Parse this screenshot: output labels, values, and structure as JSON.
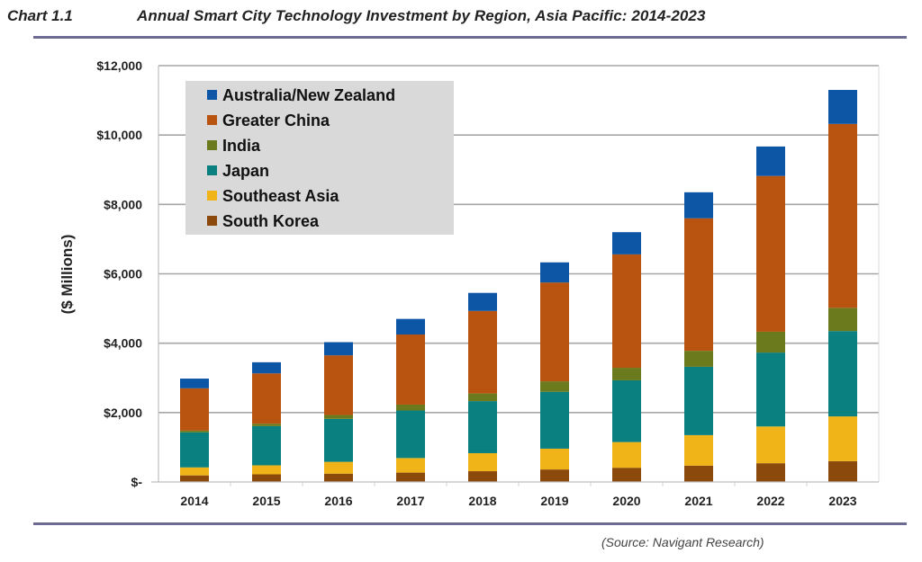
{
  "header": {
    "chart_number": "Chart 1.1",
    "title": "Annual Smart City Technology Investment by Region, Asia Pacific: 2014-2023"
  },
  "footer": {
    "source": "(Source: Navigant Research)"
  },
  "chart_data": {
    "type": "bar",
    "stacked": true,
    "title": "Annual Smart City Technology Investment by Region, Asia Pacific: 2014-2023",
    "xlabel": "",
    "ylabel": "($ Millions)",
    "ylim": [
      0,
      12000
    ],
    "yticks": [
      0,
      2000,
      4000,
      6000,
      8000,
      10000,
      12000
    ],
    "ytick_labels": [
      "$-",
      "$2,000",
      "$4,000",
      "$6,000",
      "$8,000",
      "$10,000",
      "$12,000"
    ],
    "grid": true,
    "legend_position": "top-left",
    "categories": [
      "2014",
      "2015",
      "2016",
      "2017",
      "2018",
      "2019",
      "2020",
      "2021",
      "2022",
      "2023"
    ],
    "series": [
      {
        "name": "South Korea",
        "color": "#8b4a0b",
        "values": [
          190,
          220,
          240,
          270,
          310,
          360,
          410,
          470,
          540,
          600
        ]
      },
      {
        "name": "Southeast Asia",
        "color": "#f0b418",
        "values": [
          230,
          260,
          340,
          420,
          520,
          600,
          740,
          880,
          1060,
          1290
        ]
      },
      {
        "name": "Japan",
        "color": "#0a8080",
        "values": [
          1010,
          1130,
          1240,
          1370,
          1500,
          1640,
          1780,
          1970,
          2130,
          2460
        ]
      },
      {
        "name": "India",
        "color": "#6a7a1c",
        "values": [
          50,
          70,
          110,
          170,
          220,
          300,
          360,
          460,
          600,
          670
        ]
      },
      {
        "name": "Greater China",
        "color": "#b8540f",
        "values": [
          1220,
          1450,
          1720,
          2020,
          2380,
          2850,
          3270,
          3820,
          4490,
          5300
        ]
      },
      {
        "name": "Australia/New Zealand",
        "color": "#0d55a5",
        "values": [
          280,
          320,
          380,
          450,
          520,
          580,
          640,
          750,
          850,
          980
        ]
      }
    ],
    "legend_order": [
      "Australia/New Zealand",
      "Greater China",
      "India",
      "Japan",
      "Southeast Asia",
      "South Korea"
    ]
  }
}
